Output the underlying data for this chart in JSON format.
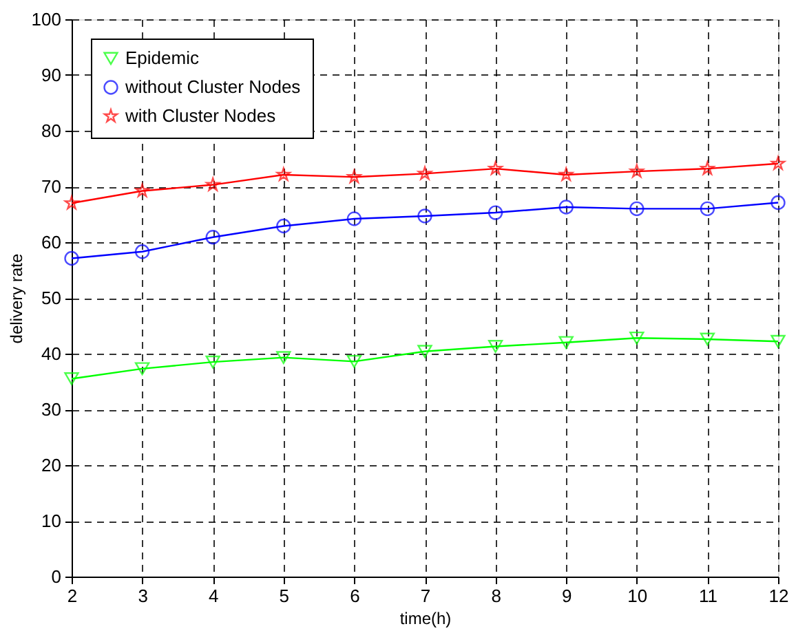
{
  "chart_data": {
    "type": "line",
    "xlabel": "time(h)",
    "ylabel": "delivery rate",
    "x": [
      2,
      3,
      4,
      5,
      6,
      7,
      8,
      9,
      10,
      11,
      12
    ],
    "series": [
      {
        "name": "Epidemic",
        "color": "#00ff00",
        "marker": "triangle",
        "values": [
          35.5,
          37.3,
          38.5,
          39.3,
          38.6,
          40.4,
          41.3,
          42.0,
          42.8,
          42.6,
          42.2
        ]
      },
      {
        "name": "without Cluster Nodes",
        "color": "#0000ff",
        "marker": "circle",
        "values": [
          57.1,
          58.3,
          60.9,
          62.9,
          64.2,
          64.7,
          65.3,
          66.3,
          66.0,
          66.0,
          67.1
        ]
      },
      {
        "name": "with Cluster Nodes",
        "color": "#ff0000",
        "marker": "star",
        "values": [
          67.0,
          69.2,
          70.3,
          72.1,
          71.7,
          72.3,
          73.2,
          72.1,
          72.7,
          73.2,
          74.1
        ]
      }
    ],
    "xlim": [
      2,
      12
    ],
    "xticks": [
      2,
      3,
      4,
      5,
      6,
      7,
      8,
      9,
      10,
      11,
      12
    ],
    "ylim": [
      0,
      100
    ],
    "yticks": [
      0,
      10,
      20,
      30,
      40,
      50,
      60,
      70,
      80,
      90,
      100
    ],
    "grid": true,
    "legend": "top left",
    "line_style": "solid"
  }
}
